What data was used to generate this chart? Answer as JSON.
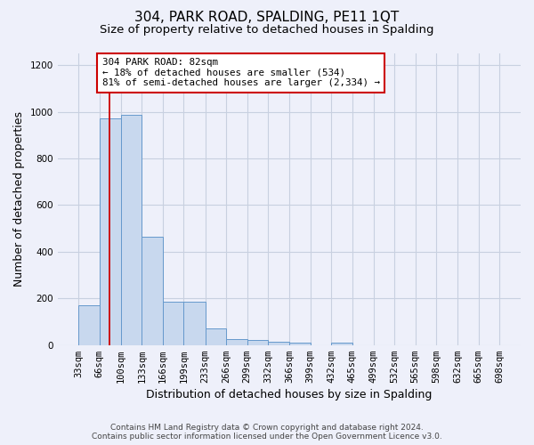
{
  "title": "304, PARK ROAD, SPALDING, PE11 1QT",
  "subtitle": "Size of property relative to detached houses in Spalding",
  "xlabel": "Distribution of detached houses by size in Spalding",
  "ylabel": "Number of detached properties",
  "footer_line1": "Contains HM Land Registry data © Crown copyright and database right 2024.",
  "footer_line2": "Contains public sector information licensed under the Open Government Licence v3.0.",
  "bin_edges": [
    33,
    66,
    100,
    133,
    166,
    199,
    233,
    266,
    299,
    332,
    366,
    399,
    432,
    465,
    499,
    532,
    565,
    598,
    632,
    665,
    698
  ],
  "bar_heights": [
    170,
    970,
    985,
    465,
    185,
    185,
    70,
    25,
    20,
    15,
    10,
    0,
    10,
    0,
    0,
    0,
    0,
    0,
    0,
    0
  ],
  "bar_color": "#c8d8ee",
  "bar_edgecolor": "#6699cc",
  "property_size": 82,
  "redline_color": "#cc0000",
  "annotation_text": "304 PARK ROAD: 82sqm\n← 18% of detached houses are smaller (534)\n81% of semi-detached houses are larger (2,334) →",
  "annotation_box_facecolor": "#ffffff",
  "annotation_box_edgecolor": "#cc0000",
  "ylim": [
    0,
    1250
  ],
  "yticks": [
    0,
    200,
    400,
    600,
    800,
    1000,
    1200
  ],
  "grid_color": "#c8d0e0",
  "background_color": "#eef0fa",
  "tick_label_fontsize": 7.5,
  "ylabel_fontsize": 9,
  "xlabel_fontsize": 9,
  "title_fontsize": 11,
  "subtitle_fontsize": 9.5
}
